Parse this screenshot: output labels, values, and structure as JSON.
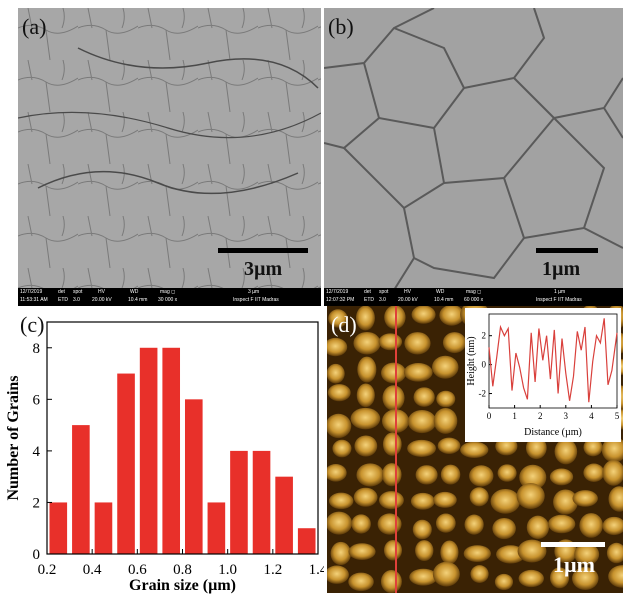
{
  "panels": {
    "a": {
      "label": "(a)",
      "scale_label": "3µm",
      "info_row1": [
        "12/7/2019",
        "det",
        "spot",
        "HV",
        "WD",
        "mag ◻",
        "3 µm"
      ],
      "info_row2": [
        "11:53:31 AM",
        "ETD",
        "3.0",
        "20.00 kV",
        "10.4 mm",
        "30 000 x",
        "Inspect F IIT Madras"
      ]
    },
    "b": {
      "label": "(b)",
      "scale_label": "1µm",
      "info_row1": [
        "12/7/2019",
        "det",
        "spot",
        "HV",
        "WD",
        "mag ◻",
        "1 µm"
      ],
      "info_row2": [
        "12:07:32 PM",
        "ETD",
        "3.0",
        "20.00 kV",
        "10.4 mm",
        "60 000 x",
        "Inspect F IIT Madras"
      ]
    },
    "c": {
      "label": "(c)"
    },
    "d": {
      "label": "(d)",
      "scale_label": "1µm",
      "inset": {
        "xlabel": "Distance (µm)",
        "ylabel": "Height (nm)",
        "xticks": [
          "0",
          "1",
          "2",
          "3",
          "4",
          "5"
        ],
        "yticks": [
          "-2",
          "0",
          "2"
        ],
        "line_color": "#d9403c"
      }
    }
  },
  "chart_data": [
    {
      "type": "bar",
      "xlabel": "Grain size (µm)",
      "ylabel": "Number of Grains",
      "x": [
        0.25,
        0.35,
        0.45,
        0.55,
        0.65,
        0.75,
        0.85,
        0.95,
        1.05,
        1.15,
        1.25,
        1.35
      ],
      "values": [
        2,
        5,
        2,
        7,
        8,
        8,
        6,
        2,
        4,
        4,
        3,
        1
      ],
      "xlim": [
        0.2,
        1.4
      ],
      "ylim": [
        0,
        9
      ],
      "xticks": [
        "0.2",
        "0.4",
        "0.6",
        "0.8",
        "1.0",
        "1.2",
        "1.4"
      ],
      "yticks": [
        "0",
        "2",
        "4",
        "6",
        "8"
      ],
      "bar_color": "#e8302a"
    },
    {
      "type": "line",
      "xlabel": "Distance (µm)",
      "ylabel": "Height (nm)",
      "xlim": [
        0,
        5
      ],
      "ylim": [
        -3,
        3.5
      ],
      "x": [
        0,
        0.15,
        0.3,
        0.45,
        0.6,
        0.75,
        0.9,
        1.05,
        1.2,
        1.35,
        1.5,
        1.65,
        1.8,
        1.95,
        2.1,
        2.25,
        2.4,
        2.55,
        2.7,
        2.85,
        3.0,
        3.15,
        3.3,
        3.45,
        3.6,
        3.75,
        3.9,
        4.05,
        4.2,
        4.35,
        4.5,
        4.65,
        4.8,
        5.0
      ],
      "y": [
        1.2,
        -1.5,
        0.5,
        2.6,
        2.0,
        2.5,
        -1.8,
        0.8,
        -0.2,
        -1.6,
        -2.4,
        2.2,
        -1.2,
        2.5,
        0.3,
        2.0,
        -1.0,
        2.4,
        -2.0,
        1.8,
        -0.6,
        -2.5,
        -0.8,
        2.3,
        1.0,
        2.6,
        -2.6,
        0.2,
        2.0,
        1.5,
        3.2,
        -1.4,
        -0.4,
        2.2
      ]
    }
  ]
}
